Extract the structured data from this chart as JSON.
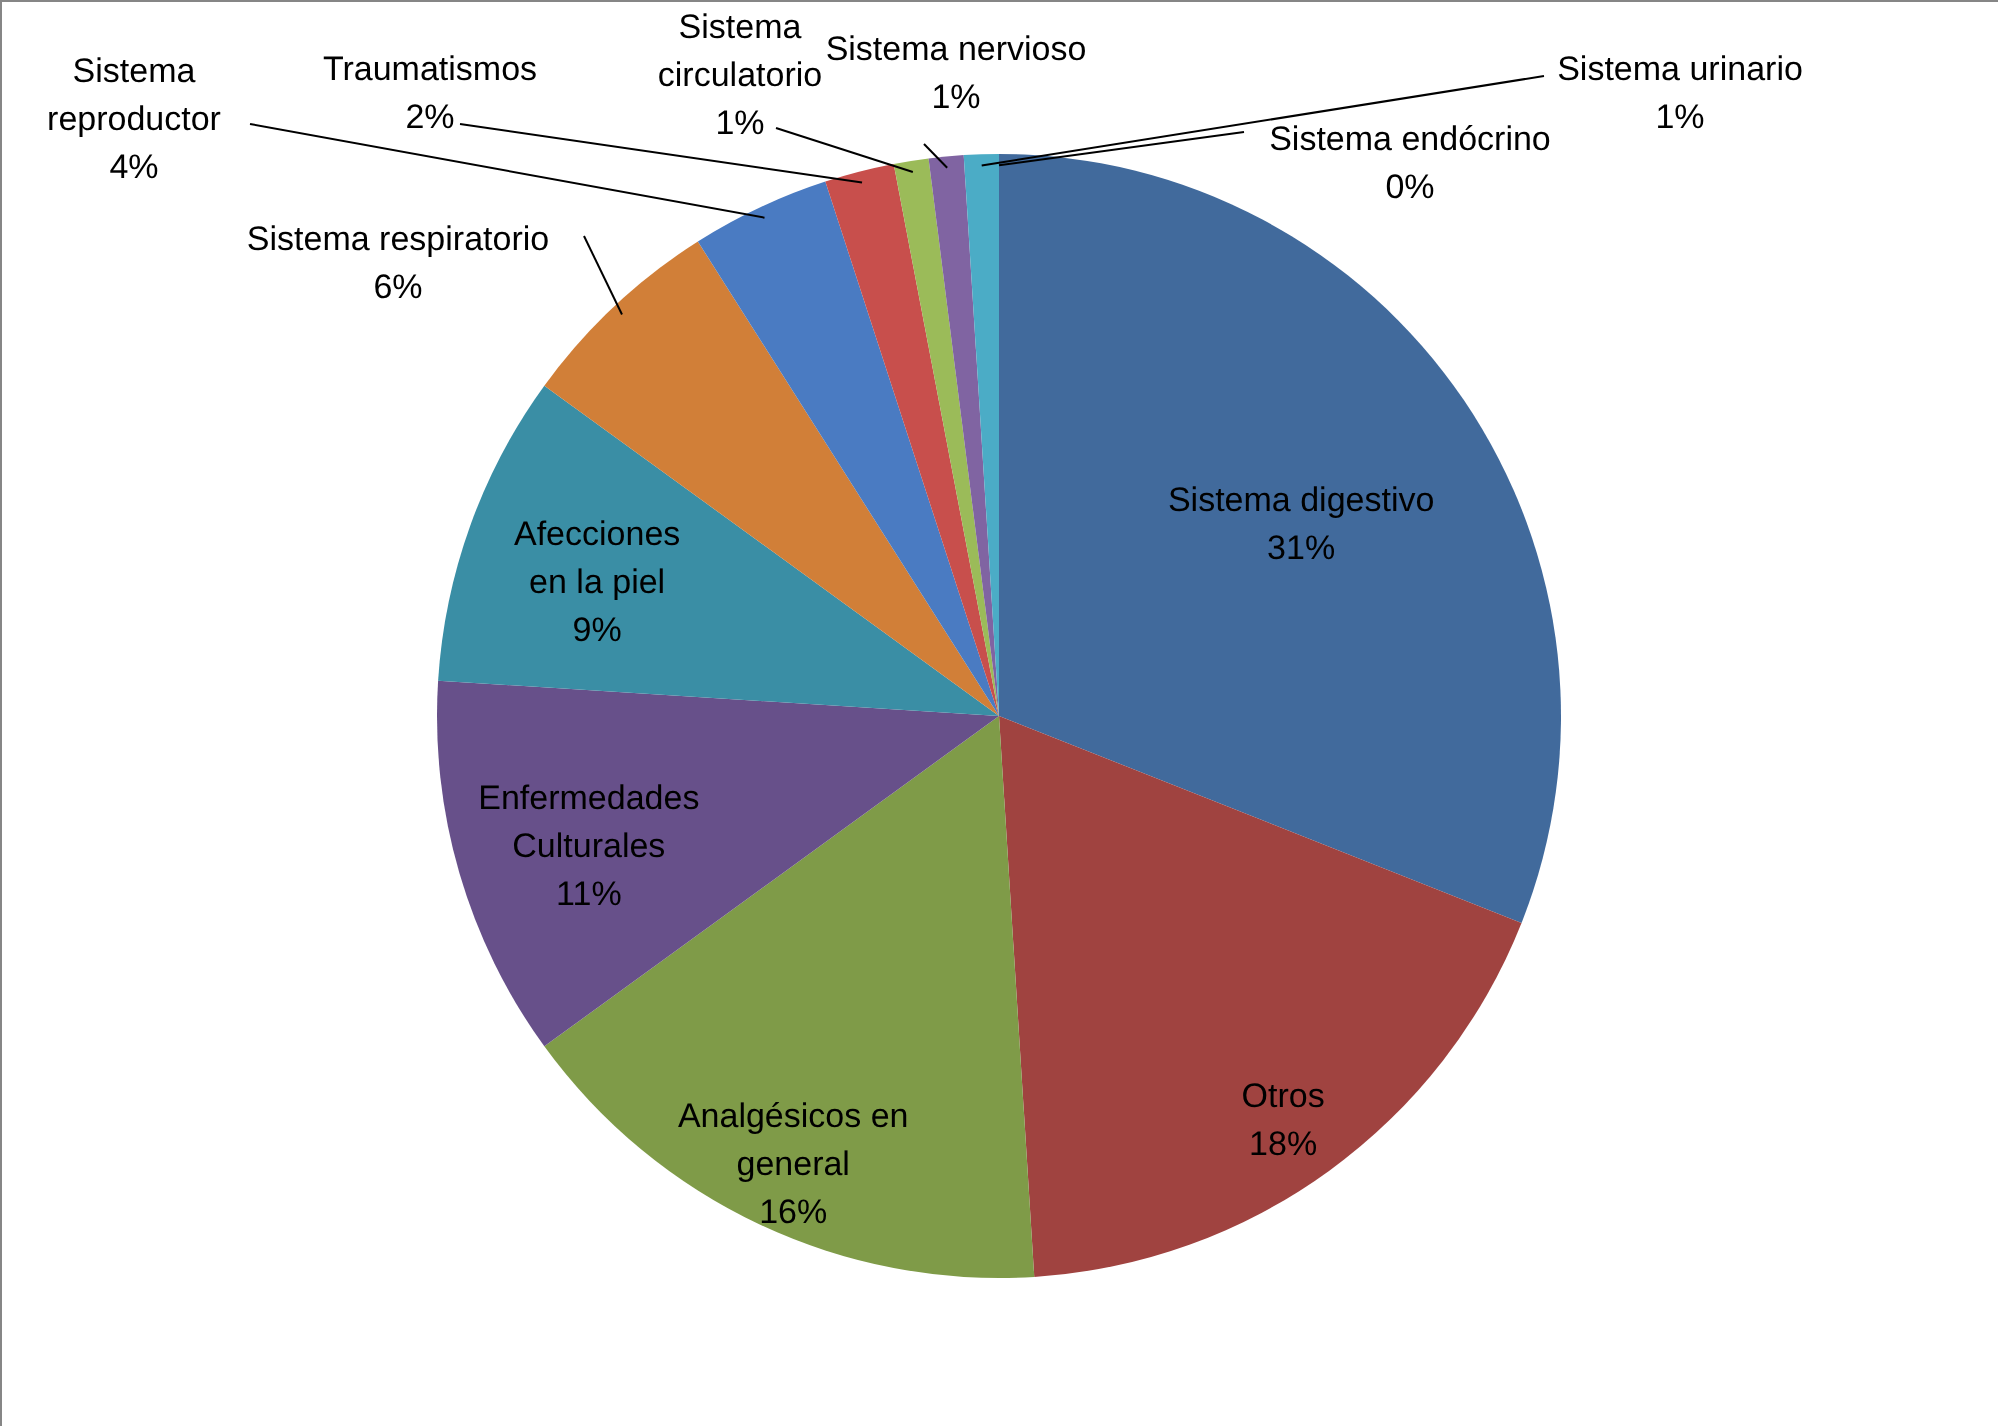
{
  "chart_data": {
    "type": "pie",
    "categories": [
      "Sistema digestivo",
      "Otros",
      "Analgésicos en general",
      "Enfermedades Culturales",
      "Afecciones en la piel",
      "Sistema respiratorio",
      "Sistema reproductor",
      "Traumatismos",
      "Sistema circulatorio",
      "Sistema nervioso",
      "Sistema urinario",
      "Sistema endócrino"
    ],
    "values": [
      31,
      18,
      16,
      11,
      9,
      6,
      4,
      2,
      1,
      1,
      1,
      0
    ],
    "value_labels": [
      "31%",
      "18%",
      "16%",
      "11%",
      "9%",
      "6%",
      "4%",
      "2%",
      "1%",
      "1%",
      "1%",
      "0%"
    ],
    "colors": [
      "#416a9c",
      "#a04340",
      "#7f9b48",
      "#67508a",
      "#3a8ea5",
      "#d17f38",
      "#4a7bc2",
      "#c84f4c",
      "#9bbb59",
      "#8064a2",
      "#4bacc6",
      "#f79646"
    ]
  }
}
